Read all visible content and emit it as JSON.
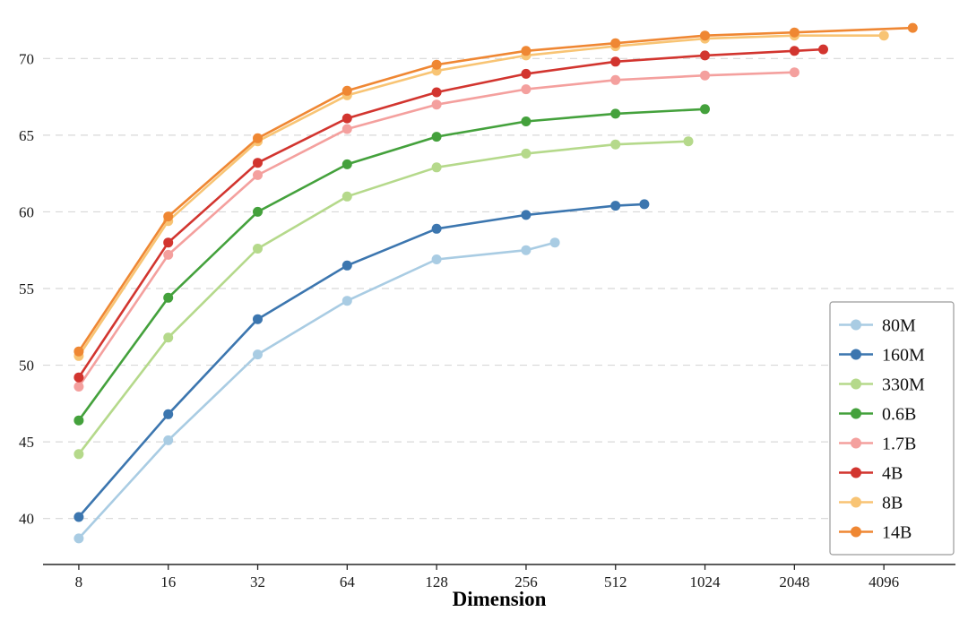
{
  "chart_data": {
    "type": "line",
    "title": "",
    "xlabel": "Dimension",
    "ylabel": "",
    "xscale": "log2",
    "xlog_range": [
      2.6,
      12.8
    ],
    "ylim": [
      37,
      73
    ],
    "x_ticks": [
      8,
      16,
      32,
      64,
      128,
      256,
      512,
      1024,
      2048,
      4096
    ],
    "y_ticks": [
      40,
      45,
      50,
      55,
      60,
      65,
      70
    ],
    "grid": "horizontal-dashed",
    "grid_color": "#d8d8d8",
    "axis_color": "#262626",
    "legend_position": "right-center",
    "legend_border_color": "#9a9a9a",
    "series": [
      {
        "name": "80M",
        "color": "#a9cce3",
        "points": [
          [
            8,
            38.7
          ],
          [
            16,
            45.1
          ],
          [
            32,
            50.7
          ],
          [
            64,
            54.2
          ],
          [
            128,
            56.9
          ],
          [
            256,
            57.5
          ],
          [
            320,
            58.0
          ]
        ]
      },
      {
        "name": "160M",
        "color": "#3c76af",
        "points": [
          [
            8,
            40.1
          ],
          [
            16,
            46.8
          ],
          [
            32,
            53.0
          ],
          [
            64,
            56.5
          ],
          [
            128,
            58.9
          ],
          [
            256,
            59.8
          ],
          [
            512,
            60.4
          ],
          [
            640,
            60.5
          ]
        ]
      },
      {
        "name": "330M",
        "color": "#b5d98b",
        "points": [
          [
            8,
            44.2
          ],
          [
            16,
            51.8
          ],
          [
            32,
            57.6
          ],
          [
            64,
            61.0
          ],
          [
            128,
            62.9
          ],
          [
            256,
            63.8
          ],
          [
            512,
            64.4
          ],
          [
            900,
            64.6
          ]
        ]
      },
      {
        "name": "0.6B",
        "color": "#44a13c",
        "points": [
          [
            8,
            46.4
          ],
          [
            16,
            54.4
          ],
          [
            32,
            60.0
          ],
          [
            64,
            63.1
          ],
          [
            128,
            64.9
          ],
          [
            256,
            65.9
          ],
          [
            512,
            66.4
          ],
          [
            1024,
            66.7
          ]
        ]
      },
      {
        "name": "1.7B",
        "color": "#f4a09e",
        "points": [
          [
            8,
            48.6
          ],
          [
            16,
            57.2
          ],
          [
            32,
            62.4
          ],
          [
            64,
            65.4
          ],
          [
            128,
            67.0
          ],
          [
            256,
            68.0
          ],
          [
            512,
            68.6
          ],
          [
            1024,
            68.9
          ],
          [
            2048,
            69.1
          ]
        ]
      },
      {
        "name": "4B",
        "color": "#d2352f",
        "points": [
          [
            8,
            49.2
          ],
          [
            16,
            58.0
          ],
          [
            32,
            63.2
          ],
          [
            64,
            66.1
          ],
          [
            128,
            67.8
          ],
          [
            256,
            69.0
          ],
          [
            512,
            69.8
          ],
          [
            1024,
            70.2
          ],
          [
            2048,
            70.5
          ],
          [
            2560,
            70.6
          ]
        ]
      },
      {
        "name": "8B",
        "color": "#f8c474",
        "points": [
          [
            8,
            50.6
          ],
          [
            16,
            59.4
          ],
          [
            32,
            64.6
          ],
          [
            64,
            67.6
          ],
          [
            128,
            69.2
          ],
          [
            256,
            70.2
          ],
          [
            512,
            70.8
          ],
          [
            1024,
            71.3
          ],
          [
            2048,
            71.5
          ],
          [
            4096,
            71.5
          ]
        ]
      },
      {
        "name": "14B",
        "color": "#ef8733",
        "points": [
          [
            8,
            50.9
          ],
          [
            16,
            59.7
          ],
          [
            32,
            64.8
          ],
          [
            64,
            67.9
          ],
          [
            128,
            69.6
          ],
          [
            256,
            70.5
          ],
          [
            512,
            71.0
          ],
          [
            1024,
            71.5
          ],
          [
            2048,
            71.7
          ],
          [
            5120,
            72.0
          ]
        ]
      }
    ]
  }
}
